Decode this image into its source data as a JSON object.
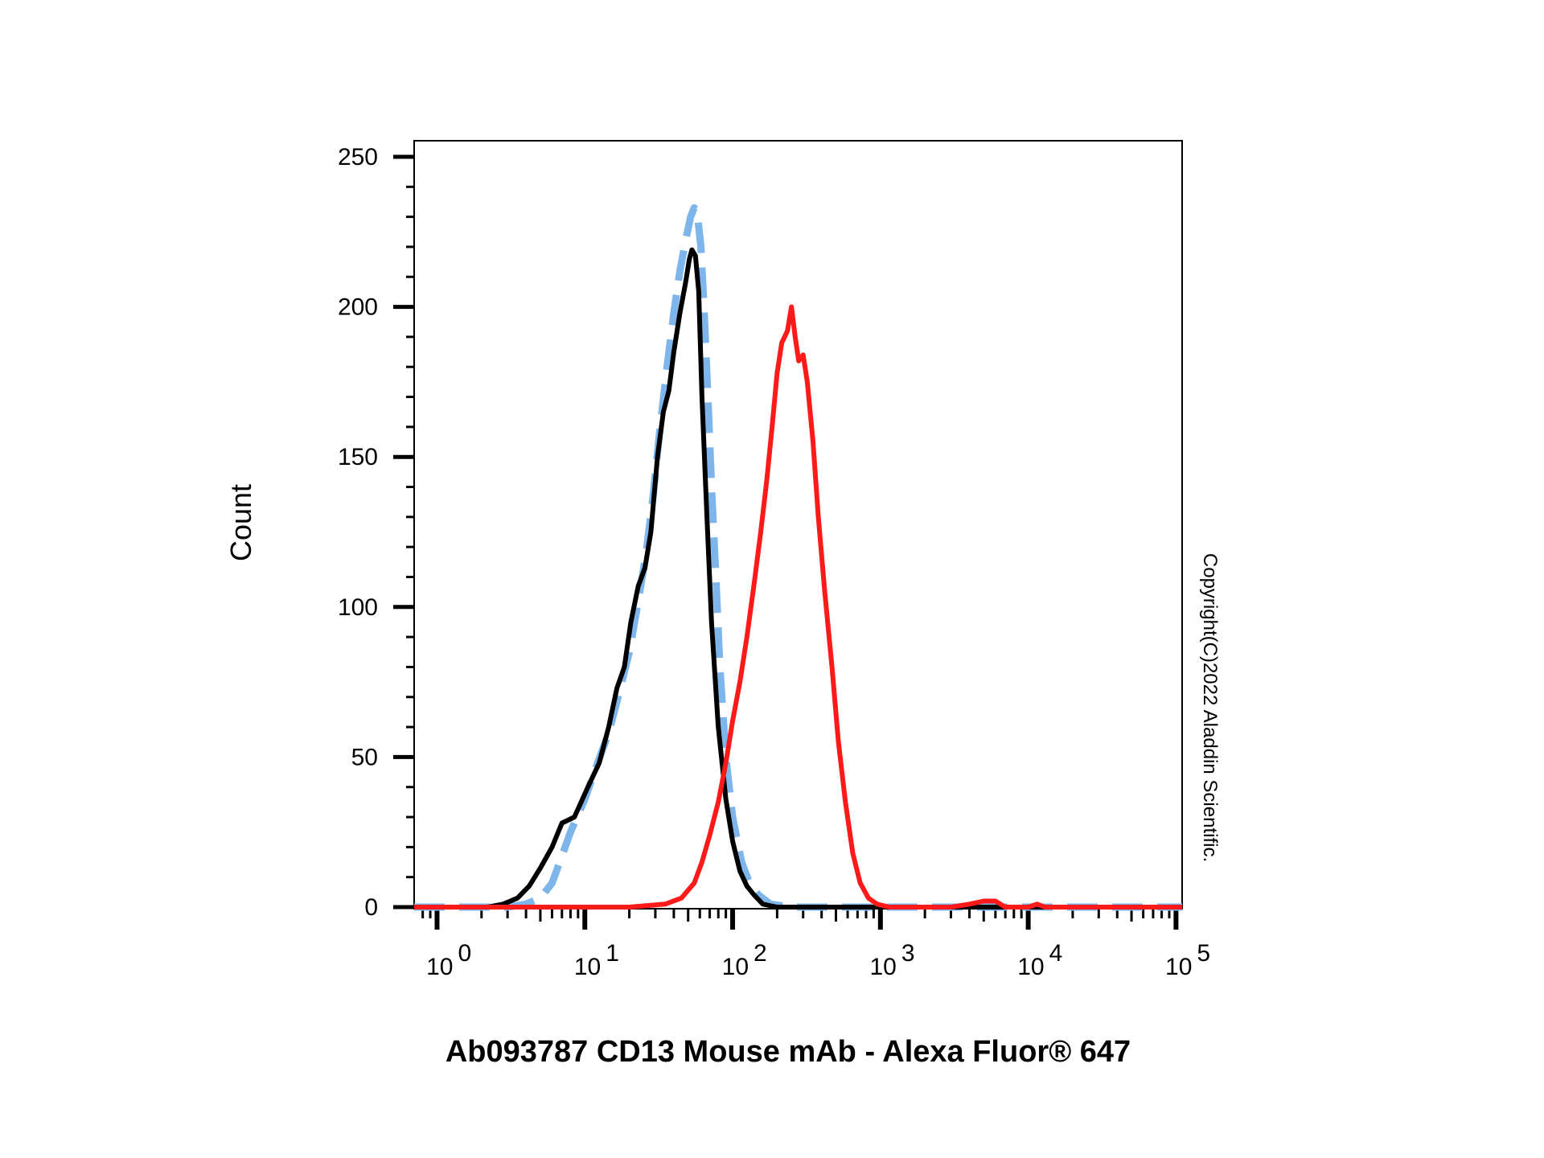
{
  "chart_data": {
    "type": "line",
    "xlabel": "Ab093787 CD13 Mouse mAb - Alexa Fluor® 647",
    "ylabel": "Count",
    "x_scale": "log",
    "xlim": [
      0.7,
      110000
    ],
    "ylim": [
      0,
      250
    ],
    "y_ticks": [
      "0",
      "50",
      "100",
      "150",
      "200",
      "250"
    ],
    "x_ticks": [
      {
        "base": "10",
        "exp": "0",
        "value": 1
      },
      {
        "base": "10",
        "exp": "1",
        "value": 10
      },
      {
        "base": "10",
        "exp": "2",
        "value": 100
      },
      {
        "base": "10",
        "exp": "3",
        "value": 1000
      },
      {
        "base": "10",
        "exp": "4",
        "value": 10000
      },
      {
        "base": "10",
        "exp": "5",
        "value": 100000
      }
    ],
    "grid": false,
    "series": [
      {
        "color": "#000000",
        "style": "solid",
        "points": [
          [
            0.7,
            0
          ],
          [
            2.2,
            0
          ],
          [
            2.8,
            1
          ],
          [
            3.5,
            3
          ],
          [
            4.2,
            7
          ],
          [
            5.0,
            13
          ],
          [
            6.0,
            20
          ],
          [
            7.0,
            28
          ],
          [
            8.5,
            30
          ],
          [
            10.5,
            40
          ],
          [
            12.5,
            48
          ],
          [
            14.5,
            60
          ],
          [
            16.5,
            73
          ],
          [
            18.5,
            80
          ],
          [
            20.5,
            95
          ],
          [
            23,
            107
          ],
          [
            25.5,
            113
          ],
          [
            28,
            125
          ],
          [
            31,
            150
          ],
          [
            34,
            165
          ],
          [
            37,
            172
          ],
          [
            40,
            185
          ],
          [
            44,
            198
          ],
          [
            48,
            208
          ],
          [
            51,
            216
          ],
          [
            53,
            219
          ],
          [
            56,
            217
          ],
          [
            59,
            205
          ],
          [
            62,
            170
          ],
          [
            67,
            130
          ],
          [
            72,
            95
          ],
          [
            80,
            60
          ],
          [
            90,
            36
          ],
          [
            100,
            22
          ],
          [
            112,
            12
          ],
          [
            125,
            7
          ],
          [
            140,
            4
          ],
          [
            160,
            1
          ],
          [
            200,
            0
          ],
          [
            300,
            0
          ],
          [
            500,
            0
          ],
          [
            1000,
            0
          ],
          [
            110000,
            0
          ]
        ]
      },
      {
        "color": "#7eb6ec",
        "style": "dashed",
        "points": [
          [
            0.7,
            0
          ],
          [
            3.0,
            0
          ],
          [
            4.0,
            1
          ],
          [
            5.0,
            3
          ],
          [
            6.0,
            8
          ],
          [
            7.0,
            17
          ],
          [
            8.0,
            25
          ],
          [
            10,
            36
          ],
          [
            12,
            47
          ],
          [
            14.5,
            58
          ],
          [
            17,
            71
          ],
          [
            20,
            85
          ],
          [
            23,
            102
          ],
          [
            26,
            118
          ],
          [
            29,
            137
          ],
          [
            32,
            158
          ],
          [
            36,
            180
          ],
          [
            40,
            198
          ],
          [
            44,
            212
          ],
          [
            48,
            222
          ],
          [
            52,
            230
          ],
          [
            55,
            233
          ],
          [
            58,
            230
          ],
          [
            61,
            220
          ],
          [
            64,
            200
          ],
          [
            68,
            170
          ],
          [
            72,
            140
          ],
          [
            77,
            110
          ],
          [
            82,
            80
          ],
          [
            90,
            50
          ],
          [
            100,
            30
          ],
          [
            115,
            15
          ],
          [
            130,
            8
          ],
          [
            150,
            4
          ],
          [
            180,
            1
          ],
          [
            250,
            0
          ],
          [
            110000,
            0
          ]
        ]
      },
      {
        "color": "#ff1a1a",
        "style": "solid",
        "points": [
          [
            0.7,
            0
          ],
          [
            20,
            0
          ],
          [
            35,
            1
          ],
          [
            45,
            3
          ],
          [
            55,
            8
          ],
          [
            62,
            15
          ],
          [
            70,
            24
          ],
          [
            80,
            35
          ],
          [
            90,
            48
          ],
          [
            100,
            62
          ],
          [
            112,
            75
          ],
          [
            125,
            90
          ],
          [
            140,
            108
          ],
          [
            155,
            125
          ],
          [
            170,
            142
          ],
          [
            185,
            160
          ],
          [
            200,
            178
          ],
          [
            215,
            188
          ],
          [
            235,
            192
          ],
          [
            250,
            200
          ],
          [
            265,
            190
          ],
          [
            280,
            182
          ],
          [
            300,
            184
          ],
          [
            320,
            175
          ],
          [
            350,
            155
          ],
          [
            380,
            130
          ],
          [
            420,
            105
          ],
          [
            470,
            80
          ],
          [
            520,
            55
          ],
          [
            580,
            35
          ],
          [
            650,
            18
          ],
          [
            730,
            8
          ],
          [
            830,
            3
          ],
          [
            950,
            1
          ],
          [
            1150,
            0
          ],
          [
            3000,
            0
          ],
          [
            4000,
            1
          ],
          [
            5000,
            2
          ],
          [
            6000,
            2
          ],
          [
            7000,
            0
          ],
          [
            10000,
            0
          ],
          [
            11500,
            1
          ],
          [
            13000,
            0
          ],
          [
            110000,
            0
          ]
        ]
      }
    ]
  },
  "copyright": "Copyright(C)2022 Aladdin Scientific."
}
